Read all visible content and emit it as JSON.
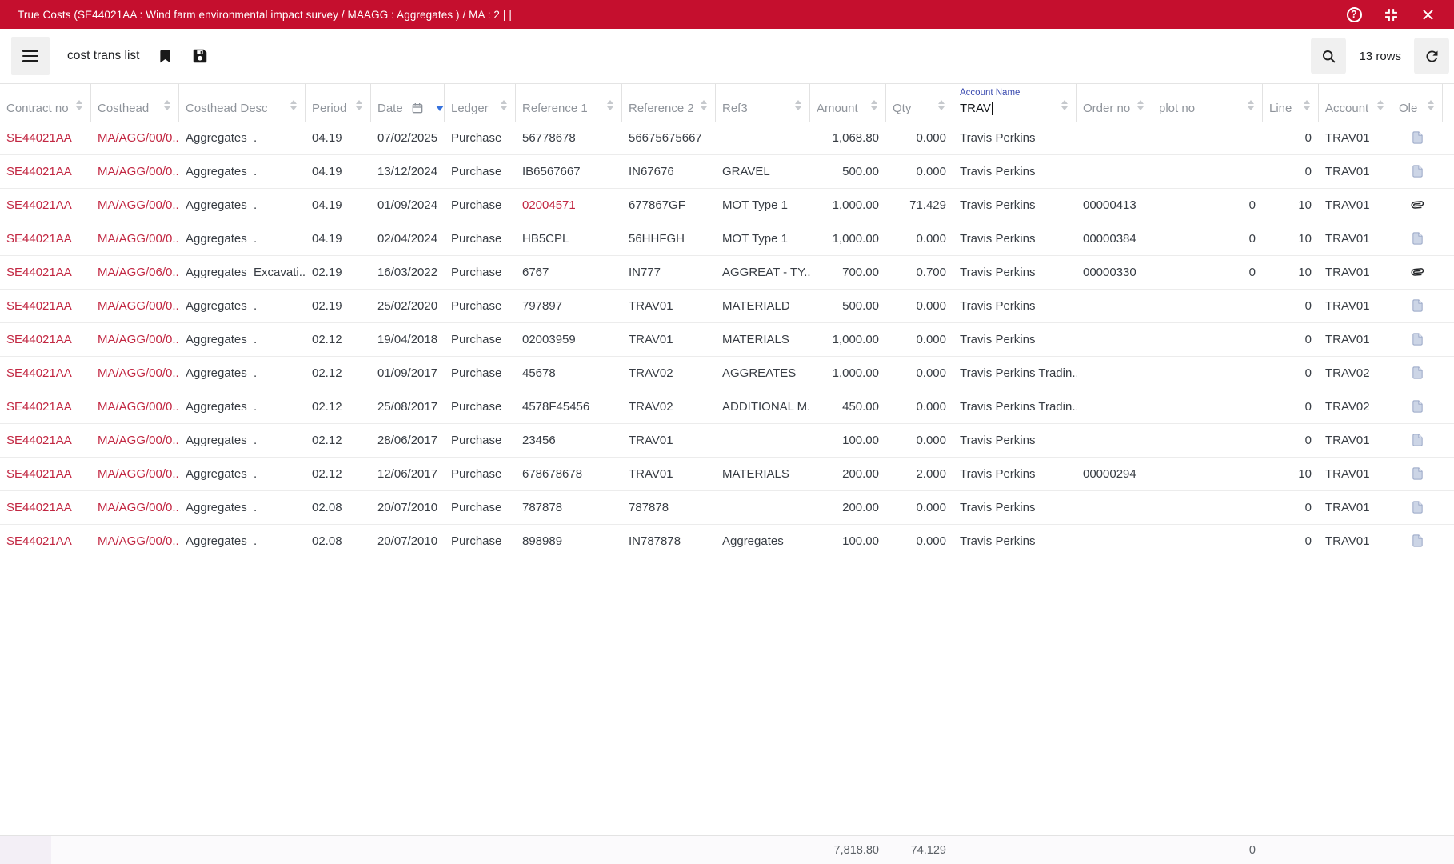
{
  "title_bar": {
    "title": "True Costs (SE44021AA : Wind farm environmental impact survey / MAAGG : Aggregates ) / MA : 2 | |"
  },
  "toolbar": {
    "view_name": "cost trans list",
    "row_count": "13 rows"
  },
  "columns": [
    {
      "key": "contract_no",
      "label": "Contract no",
      "align": "left"
    },
    {
      "key": "costhead",
      "label": "Costhead",
      "align": "left"
    },
    {
      "key": "costhead_desc",
      "label": "Costhead Desc",
      "align": "left"
    },
    {
      "key": "period",
      "label": "Period",
      "align": "left"
    },
    {
      "key": "date",
      "label": "Date",
      "align": "left",
      "calendar_icon": true,
      "filter_dropdown": true,
      "sortable": false
    },
    {
      "key": "ledger",
      "label": "Ledger",
      "align": "left"
    },
    {
      "key": "reference1",
      "label": "Reference 1",
      "align": "left"
    },
    {
      "key": "reference2",
      "label": "Reference 2",
      "align": "left"
    },
    {
      "key": "ref3",
      "label": "Ref3",
      "align": "left"
    },
    {
      "key": "amount",
      "label": "Amount",
      "align": "right"
    },
    {
      "key": "qty",
      "label": "Qty",
      "align": "right"
    },
    {
      "key": "account_name",
      "label": "Account Name",
      "align": "left",
      "active": true,
      "filter_value": "TRAV"
    },
    {
      "key": "order_no",
      "label": "Order no",
      "align": "left"
    },
    {
      "key": "plot_no",
      "label": "plot no",
      "align": "right"
    },
    {
      "key": "line",
      "label": "Line",
      "align": "right"
    },
    {
      "key": "account",
      "label": "Account",
      "align": "left"
    },
    {
      "key": "ole",
      "label": "Ole",
      "align": "center"
    }
  ],
  "rows": [
    {
      "contract_no": "SE44021AA",
      "costhead": "MA/AGG/00/0...",
      "costhead_desc": "Aggregates  .",
      "period": "04.19",
      "date": "07/02/2025",
      "ledger": "Purchase",
      "reference1": "56778678",
      "reference1_link": false,
      "reference2": "56675675667",
      "ref3": "",
      "amount": "1,068.80",
      "qty": "0.000",
      "account_name": "Travis Perkins",
      "order_no": "",
      "plot_no": "",
      "line": "0",
      "account": "TRAV01",
      "ole": "document"
    },
    {
      "contract_no": "SE44021AA",
      "costhead": "MA/AGG/00/0...",
      "costhead_desc": "Aggregates  .",
      "period": "04.19",
      "date": "13/12/2024",
      "ledger": "Purchase",
      "reference1": "IB6567667",
      "reference1_link": false,
      "reference2": "IN67676",
      "ref3": "GRAVEL",
      "amount": "500.00",
      "qty": "0.000",
      "account_name": "Travis Perkins",
      "order_no": "",
      "plot_no": "",
      "line": "0",
      "account": "TRAV01",
      "ole": "document"
    },
    {
      "contract_no": "SE44021AA",
      "costhead": "MA/AGG/00/0...",
      "costhead_desc": "Aggregates  .",
      "period": "04.19",
      "date": "01/09/2024",
      "ledger": "Purchase",
      "reference1": "02004571",
      "reference1_link": true,
      "reference2": "677867GF",
      "ref3": "MOT Type 1",
      "amount": "1,000.00",
      "qty": "71.429",
      "account_name": "Travis Perkins",
      "order_no": "00000413",
      "plot_no": "0",
      "line": "10",
      "account": "TRAV01",
      "ole": "paperclip"
    },
    {
      "contract_no": "SE44021AA",
      "costhead": "MA/AGG/00/0...",
      "costhead_desc": "Aggregates  .",
      "period": "04.19",
      "date": "02/04/2024",
      "ledger": "Purchase",
      "reference1": "HB5CPL",
      "reference1_link": false,
      "reference2": "56HHFGH",
      "ref3": "MOT Type 1",
      "amount": "1,000.00",
      "qty": "0.000",
      "account_name": "Travis Perkins",
      "order_no": "00000384",
      "plot_no": "0",
      "line": "10",
      "account": "TRAV01",
      "ole": "document"
    },
    {
      "contract_no": "SE44021AA",
      "costhead": "MA/AGG/06/0...",
      "costhead_desc": "Aggregates  Excavati...",
      "period": "02.19",
      "date": "16/03/2022",
      "ledger": "Purchase",
      "reference1": "6767",
      "reference1_link": false,
      "reference2": "IN777",
      "ref3": "AGGREAT - TY...",
      "amount": "700.00",
      "qty": "0.700",
      "account_name": "Travis Perkins",
      "order_no": "00000330",
      "plot_no": "0",
      "line": "10",
      "account": "TRAV01",
      "ole": "paperclip"
    },
    {
      "contract_no": "SE44021AA",
      "costhead": "MA/AGG/00/0...",
      "costhead_desc": "Aggregates  .",
      "period": "02.19",
      "date": "25/02/2020",
      "ledger": "Purchase",
      "reference1": "797897",
      "reference1_link": false,
      "reference2": "TRAV01",
      "ref3": "MATERIALD",
      "amount": "500.00",
      "qty": "0.000",
      "account_name": "Travis Perkins",
      "order_no": "",
      "plot_no": "",
      "line": "0",
      "account": "TRAV01",
      "ole": "document"
    },
    {
      "contract_no": "SE44021AA",
      "costhead": "MA/AGG/00/0...",
      "costhead_desc": "Aggregates  .",
      "period": "02.12",
      "date": "19/04/2018",
      "ledger": "Purchase",
      "reference1": "02003959",
      "reference1_link": false,
      "reference2": "TRAV01",
      "ref3": "MATERIALS",
      "amount": "1,000.00",
      "qty": "0.000",
      "account_name": "Travis Perkins",
      "order_no": "",
      "plot_no": "",
      "line": "0",
      "account": "TRAV01",
      "ole": "document"
    },
    {
      "contract_no": "SE44021AA",
      "costhead": "MA/AGG/00/0...",
      "costhead_desc": "Aggregates  .",
      "period": "02.12",
      "date": "01/09/2017",
      "ledger": "Purchase",
      "reference1": "45678",
      "reference1_link": false,
      "reference2": "TRAV02",
      "ref3": "AGGREATES",
      "amount": "1,000.00",
      "qty": "0.000",
      "account_name": "Travis Perkins Tradin...",
      "order_no": "",
      "plot_no": "",
      "line": "0",
      "account": "TRAV02",
      "ole": "document"
    },
    {
      "contract_no": "SE44021AA",
      "costhead": "MA/AGG/00/0...",
      "costhead_desc": "Aggregates  .",
      "period": "02.12",
      "date": "25/08/2017",
      "ledger": "Purchase",
      "reference1": "4578F45456",
      "reference1_link": false,
      "reference2": "TRAV02",
      "ref3": "ADDITIONAL M...",
      "amount": "450.00",
      "qty": "0.000",
      "account_name": "Travis Perkins Tradin...",
      "order_no": "",
      "plot_no": "",
      "line": "0",
      "account": "TRAV02",
      "ole": "document"
    },
    {
      "contract_no": "SE44021AA",
      "costhead": "MA/AGG/00/0...",
      "costhead_desc": "Aggregates  .",
      "period": "02.12",
      "date": "28/06/2017",
      "ledger": "Purchase",
      "reference1": "23456",
      "reference1_link": false,
      "reference2": "TRAV01",
      "ref3": "",
      "amount": "100.00",
      "qty": "0.000",
      "account_name": "Travis Perkins",
      "order_no": "",
      "plot_no": "",
      "line": "0",
      "account": "TRAV01",
      "ole": "document"
    },
    {
      "contract_no": "SE44021AA",
      "costhead": "MA/AGG/00/0...",
      "costhead_desc": "Aggregates  .",
      "period": "02.12",
      "date": "12/06/2017",
      "ledger": "Purchase",
      "reference1": "678678678",
      "reference1_link": false,
      "reference2": "TRAV01",
      "ref3": "MATERIALS",
      "amount": "200.00",
      "qty": "2.000",
      "account_name": "Travis Perkins",
      "order_no": "00000294",
      "plot_no": "",
      "line": "10",
      "account": "TRAV01",
      "ole": "document"
    },
    {
      "contract_no": "SE44021AA",
      "costhead": "MA/AGG/00/0...",
      "costhead_desc": "Aggregates  .",
      "period": "02.08",
      "date": "20/07/2010",
      "ledger": "Purchase",
      "reference1": "787878",
      "reference1_link": false,
      "reference2": "787878",
      "ref3": "",
      "amount": "200.00",
      "qty": "0.000",
      "account_name": "Travis Perkins",
      "order_no": "",
      "plot_no": "",
      "line": "0",
      "account": "TRAV01",
      "ole": "document"
    },
    {
      "contract_no": "SE44021AA",
      "costhead": "MA/AGG/00/0...",
      "costhead_desc": "Aggregates  .",
      "period": "02.08",
      "date": "20/07/2010",
      "ledger": "Purchase",
      "reference1": "898989",
      "reference1_link": false,
      "reference2": "IN787878",
      "ref3": "Aggregates",
      "amount": "100.00",
      "qty": "0.000",
      "account_name": "Travis Perkins",
      "order_no": "",
      "plot_no": "",
      "line": "0",
      "account": "TRAV01",
      "ole": "document"
    }
  ],
  "totals": {
    "amount": "7,818.80",
    "qty": "74.129",
    "plot_no": "0"
  },
  "colors": {
    "titlebar_red": "#c50f2e",
    "link_red": "#c22742",
    "active_label_blue": "#3c4cb0",
    "dropdown_blue": "#3672dd"
  }
}
